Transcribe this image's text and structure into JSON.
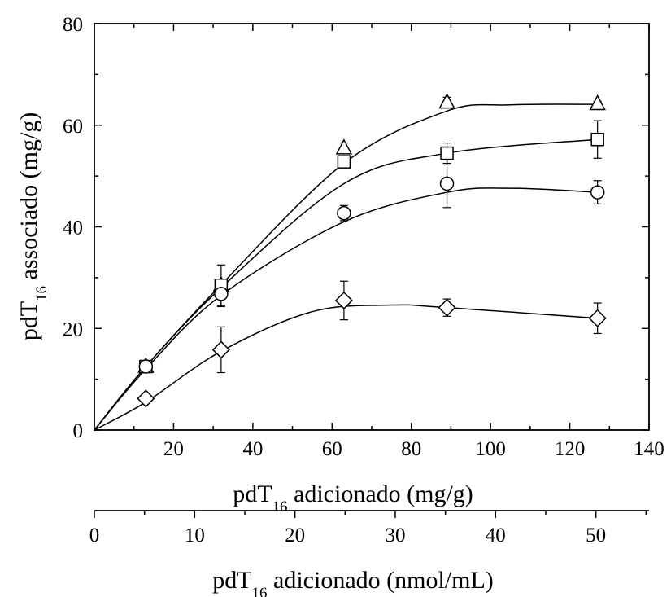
{
  "chart_data": {
    "type": "scatter",
    "title": "",
    "xlabel": {
      "prefix": "pdT",
      "subscript": "16",
      "suffix": " adicionado (mg/g)"
    },
    "ylabel": {
      "prefix": "pdT",
      "subscript": "16",
      "suffix": " associado (mg/g)"
    },
    "x2label": {
      "prefix": "pdT",
      "subscript": "16",
      "suffix": " adicionado (nmol/mL)"
    },
    "xlim": [
      0,
      140
    ],
    "ylim": [
      0,
      80
    ],
    "x2lim": [
      0,
      55.3
    ],
    "xticks": [
      20,
      40,
      60,
      80,
      100,
      120,
      140
    ],
    "xtick_labels": [
      "20",
      "40",
      "60",
      "80",
      "100",
      "120",
      "140"
    ],
    "yticks": [
      0,
      20,
      40,
      60,
      80
    ],
    "ytick_labels": [
      "0",
      "20",
      "40",
      "60",
      "80"
    ],
    "x2ticks": [
      0,
      10,
      20,
      30,
      40,
      50
    ],
    "x2tick_labels": [
      "0",
      "10",
      "20",
      "30",
      "40",
      "50"
    ],
    "grid": false,
    "legend": "none",
    "series": [
      {
        "marker": "triangle",
        "x": [
          0,
          13,
          32,
          63,
          89,
          127
        ],
        "y": [
          0,
          12.5,
          28.5,
          55.5,
          64.5,
          64.2
        ],
        "err": [
          0,
          0,
          0,
          1.0,
          1.0,
          0.5
        ],
        "fit_x": [
          0,
          13,
          32,
          63,
          89,
          105,
          127
        ],
        "fit_y": [
          0,
          12.5,
          28.6,
          52.5,
          62.8,
          64.0,
          64.1
        ]
      },
      {
        "marker": "square",
        "x": [
          0,
          13,
          32,
          63,
          89,
          127
        ],
        "y": [
          0,
          12.5,
          28.5,
          52.8,
          54.5,
          57.2
        ],
        "err": [
          0,
          0,
          4.0,
          1.0,
          2.0,
          3.7
        ],
        "fit_x": [
          0,
          13,
          32,
          63,
          89,
          127
        ],
        "fit_y": [
          0,
          12.5,
          28.0,
          48.5,
          54.5,
          57.2
        ]
      },
      {
        "marker": "circle",
        "x": [
          0,
          13,
          32,
          63,
          89,
          127
        ],
        "y": [
          0,
          12.5,
          26.8,
          42.7,
          48.5,
          46.8
        ],
        "err": [
          0,
          0,
          2.5,
          1.5,
          4.7,
          2.3
        ],
        "fit_x": [
          0,
          13,
          32,
          63,
          89,
          105,
          127
        ],
        "fit_y": [
          0,
          12.0,
          26.5,
          41.0,
          46.8,
          47.6,
          46.8
        ]
      },
      {
        "marker": "diamond",
        "x": [
          0,
          13,
          32,
          63,
          89,
          127
        ],
        "y": [
          0,
          6.2,
          15.8,
          25.5,
          24.1,
          22.0
        ],
        "err": [
          0,
          0.8,
          4.5,
          3.8,
          1.7,
          3.0
        ],
        "fit_x": [
          0,
          13,
          32,
          55,
          75,
          89,
          127
        ],
        "fit_y": [
          0,
          5.5,
          15.5,
          23.3,
          24.6,
          24.1,
          22.0
        ]
      }
    ]
  }
}
